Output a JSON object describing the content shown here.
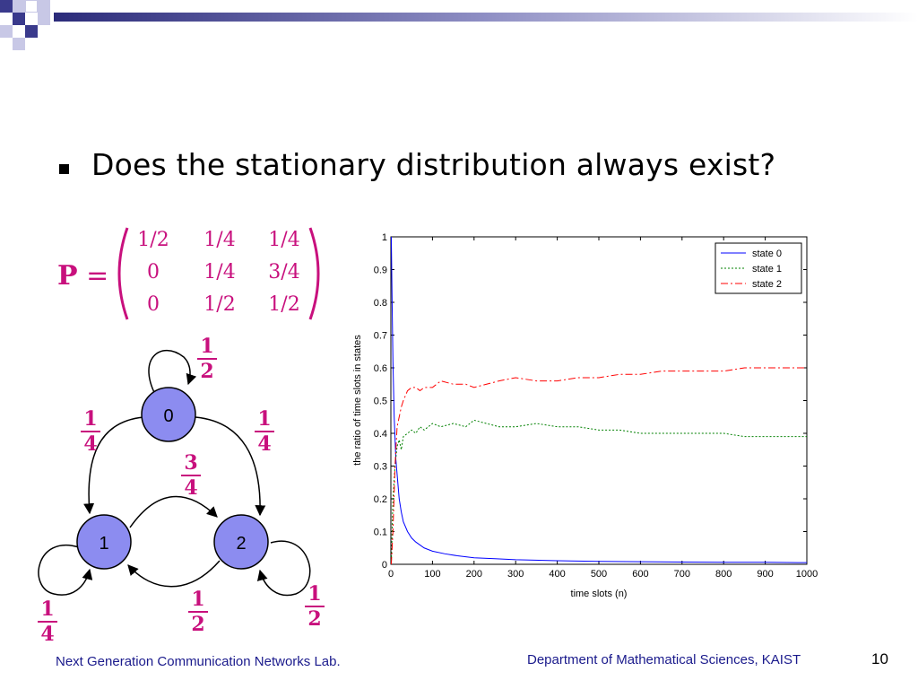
{
  "bullet": {
    "text": "Does the stationary distribution always exist?"
  },
  "matrix": {
    "label": "P",
    "rows": [
      [
        "1/2",
        "1/4",
        "1/4"
      ],
      [
        "0",
        "1/4",
        "3/4"
      ],
      [
        "0",
        "1/2",
        "1/2"
      ]
    ]
  },
  "graph": {
    "nodes": [
      {
        "label": "0"
      },
      {
        "label": "1"
      },
      {
        "label": "2"
      }
    ],
    "edges": [
      {
        "from": "0",
        "to": "0",
        "weight": {
          "num": "1",
          "den": "2"
        }
      },
      {
        "from": "0",
        "to": "1",
        "weight": {
          "num": "1",
          "den": "4"
        }
      },
      {
        "from": "0",
        "to": "2",
        "weight": {
          "num": "1",
          "den": "4"
        }
      },
      {
        "from": "1",
        "to": "2",
        "weight": {
          "num": "3",
          "den": "4"
        }
      },
      {
        "from": "1",
        "to": "1",
        "weight": {
          "num": "1",
          "den": "4"
        }
      },
      {
        "from": "2",
        "to": "1",
        "weight": {
          "num": "1",
          "den": "2"
        }
      },
      {
        "from": "2",
        "to": "2",
        "weight": {
          "num": "1",
          "den": "2"
        }
      }
    ]
  },
  "chart_data": {
    "type": "line",
    "title": "",
    "xlabel": "time slots (n)",
    "ylabel": "the ratio of time slots in states",
    "xlim": [
      0,
      1000
    ],
    "ylim": [
      0,
      1
    ],
    "xticks": [
      0,
      100,
      200,
      300,
      400,
      500,
      600,
      700,
      800,
      900,
      1000
    ],
    "yticks": [
      0,
      0.1,
      0.2,
      0.3,
      0.4,
      0.5,
      0.6,
      0.7,
      0.8,
      0.9,
      1
    ],
    "legend_position": "top-right",
    "grid": false,
    "series": [
      {
        "name": "state 0",
        "color": "#0000ff",
        "style": "solid",
        "x": [
          1,
          3,
          5,
          8,
          12,
          16,
          20,
          25,
          30,
          40,
          50,
          60,
          80,
          100,
          130,
          160,
          200,
          250,
          300,
          400,
          500,
          600,
          700,
          800,
          900,
          1000
        ],
        "y": [
          1.0,
          0.8,
          0.62,
          0.45,
          0.32,
          0.26,
          0.2,
          0.16,
          0.13,
          0.1,
          0.08,
          0.068,
          0.05,
          0.04,
          0.032,
          0.026,
          0.02,
          0.017,
          0.014,
          0.011,
          0.009,
          0.008,
          0.007,
          0.006,
          0.006,
          0.005
        ]
      },
      {
        "name": "state 1",
        "color": "#008000",
        "style": "dotted",
        "x": [
          1,
          5,
          10,
          15,
          20,
          25,
          30,
          40,
          50,
          60,
          70,
          80,
          100,
          120,
          150,
          180,
          200,
          230,
          260,
          300,
          350,
          400,
          450,
          500,
          550,
          600,
          650,
          700,
          750,
          800,
          850,
          900,
          950,
          1000
        ],
        "y": [
          0.0,
          0.2,
          0.3,
          0.36,
          0.38,
          0.35,
          0.39,
          0.4,
          0.41,
          0.4,
          0.42,
          0.41,
          0.43,
          0.42,
          0.43,
          0.42,
          0.44,
          0.43,
          0.42,
          0.42,
          0.43,
          0.42,
          0.42,
          0.41,
          0.41,
          0.4,
          0.4,
          0.4,
          0.4,
          0.4,
          0.39,
          0.39,
          0.39,
          0.39
        ]
      },
      {
        "name": "state 2",
        "color": "#ff0000",
        "style": "dashdot",
        "x": [
          1,
          5,
          10,
          15,
          20,
          25,
          30,
          40,
          50,
          60,
          70,
          80,
          100,
          120,
          150,
          180,
          200,
          230,
          260,
          300,
          350,
          400,
          450,
          500,
          550,
          600,
          650,
          700,
          750,
          800,
          850,
          900,
          950,
          1000
        ],
        "y": [
          0.0,
          0.1,
          0.3,
          0.42,
          0.45,
          0.48,
          0.5,
          0.53,
          0.54,
          0.54,
          0.53,
          0.54,
          0.54,
          0.56,
          0.55,
          0.55,
          0.54,
          0.55,
          0.56,
          0.57,
          0.56,
          0.56,
          0.57,
          0.57,
          0.58,
          0.58,
          0.59,
          0.59,
          0.59,
          0.59,
          0.6,
          0.6,
          0.6,
          0.6
        ]
      }
    ]
  },
  "footer": {
    "left": "Next Generation Communication Networks Lab.",
    "right": "Department of Mathematical Sciences, KAIST",
    "page": "10"
  },
  "colors": {
    "accent": "#c8107d",
    "node_fill": "#8c8cf0",
    "footer_text": "#1a1a8c",
    "header_bar": "#3a3a8c"
  }
}
